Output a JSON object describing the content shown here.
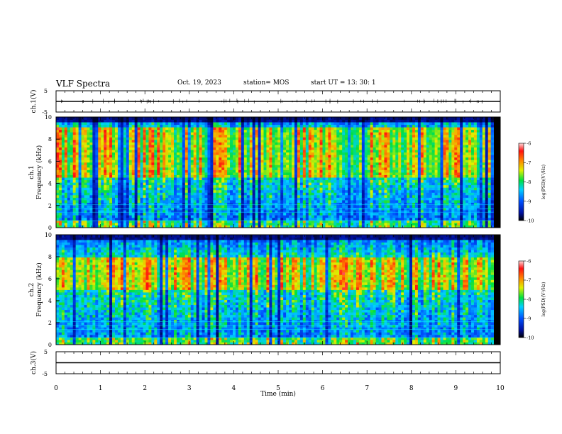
{
  "header": {
    "title": "VLF Spectra",
    "date": "Oct. 19, 2023",
    "station": "station= MOS",
    "start_ut": "start  UT =   13: 30: 1"
  },
  "chart_data": [
    {
      "type": "line",
      "name": "ch1-waveform",
      "ylabel": "ch.1(V)",
      "ylim": [
        -5,
        5
      ],
      "yticks": [
        "5",
        "-5"
      ],
      "xlim": [
        0,
        10
      ],
      "level": 0
    },
    {
      "type": "heatmap",
      "name": "ch1-spectrogram",
      "ylabel_line1": "ch.1",
      "ylabel_line2": "Frequency (kHz)",
      "ylim": [
        0,
        10
      ],
      "yticks": [
        "0",
        "2",
        "4",
        "6",
        "8",
        "10"
      ],
      "xlim": [
        0,
        9.85
      ],
      "colorbar": {
        "label": "log(PSD)(V²/Hz)",
        "range": [
          -10,
          -6
        ],
        "ticks": [
          "-6",
          "-7",
          "-8",
          "-9",
          "-10"
        ]
      },
      "dominant_band_khz": [
        4.5,
        9
      ]
    },
    {
      "type": "heatmap",
      "name": "ch2-spectrogram",
      "ylabel_line1": "ch.2",
      "ylabel_line2": "Frequency (kHz)",
      "ylim": [
        0,
        10
      ],
      "yticks": [
        "0",
        "2",
        "4",
        "6",
        "8",
        "10"
      ],
      "xlim": [
        0,
        9.85
      ],
      "colorbar": {
        "label": "log(PSD)(V²/Hz)",
        "range": [
          -10,
          -6
        ],
        "ticks": [
          "-6",
          "-7",
          "-8",
          "-9",
          "-10"
        ]
      },
      "dominant_band_khz": [
        5,
        8
      ]
    },
    {
      "type": "line",
      "name": "ch3-waveform",
      "ylabel": "ch.3(V)",
      "ylim": [
        -5,
        5
      ],
      "yticks": [
        "5",
        "-5"
      ],
      "xlim": [
        0,
        10
      ],
      "level": 0
    }
  ],
  "xaxis": {
    "label": "Time (min)",
    "range": [
      0,
      10
    ],
    "ticks": [
      "0",
      "1",
      "2",
      "3",
      "4",
      "5",
      "6",
      "7",
      "8",
      "9",
      "10"
    ]
  }
}
